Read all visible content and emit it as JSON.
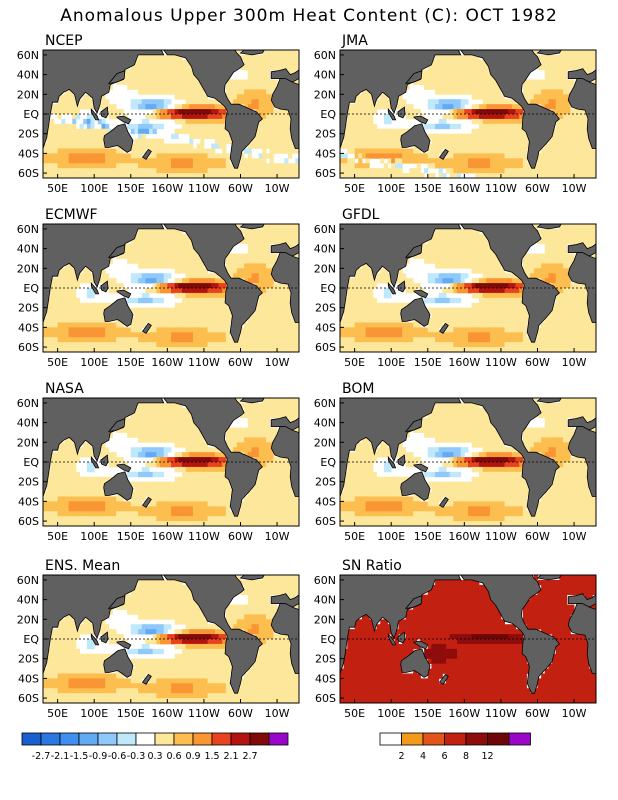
{
  "title": "Anomalous Upper 300m Heat Content (C): OCT 1982",
  "chart_data": {
    "type": "heatmap",
    "x_ticks": [
      "50E",
      "100E",
      "150E",
      "160W",
      "110W",
      "60W",
      "10W"
    ],
    "y_ticks": [
      "60N",
      "40N",
      "20N",
      "EQ",
      "20S",
      "40S",
      "60S"
    ],
    "ylim": [
      -65,
      65
    ],
    "panels": [
      {
        "name": "NCEP",
        "kind": "anomaly"
      },
      {
        "name": "JMA",
        "kind": "anomaly"
      },
      {
        "name": "ECMWF",
        "kind": "anomaly"
      },
      {
        "name": "GFDL",
        "kind": "anomaly"
      },
      {
        "name": "NASA",
        "kind": "anomaly"
      },
      {
        "name": "BOM",
        "kind": "anomaly"
      },
      {
        "name": "ENS. Mean",
        "kind": "anomaly"
      },
      {
        "name": "SN Ratio",
        "kind": "snr"
      }
    ],
    "anomaly_colorbar": {
      "labels": [
        "-2.7",
        "-2.1",
        "-1.5",
        "-0.9",
        "-0.6",
        "-0.3",
        "0.3",
        "0.6",
        "0.9",
        "1.5",
        "2.1",
        "2.7"
      ],
      "colors": [
        "#1a5fcf",
        "#2a78e0",
        "#3f8ff0",
        "#63aaf5",
        "#8fc8fa",
        "#bfe8fb",
        "#ffffff",
        "#fde79b",
        "#fdbe50",
        "#f99533",
        "#e8421e",
        "#b31410",
        "#7f0a08",
        "#9a06c8"
      ]
    },
    "snr_colorbar": {
      "labels": [
        "2",
        "4",
        "6",
        "8",
        "12"
      ],
      "colors": [
        "#ffffff",
        "#f49a1a",
        "#e2541a",
        "#c22010",
        "#8e0c0c",
        "#6e0606",
        "#9a06c8"
      ]
    }
  }
}
